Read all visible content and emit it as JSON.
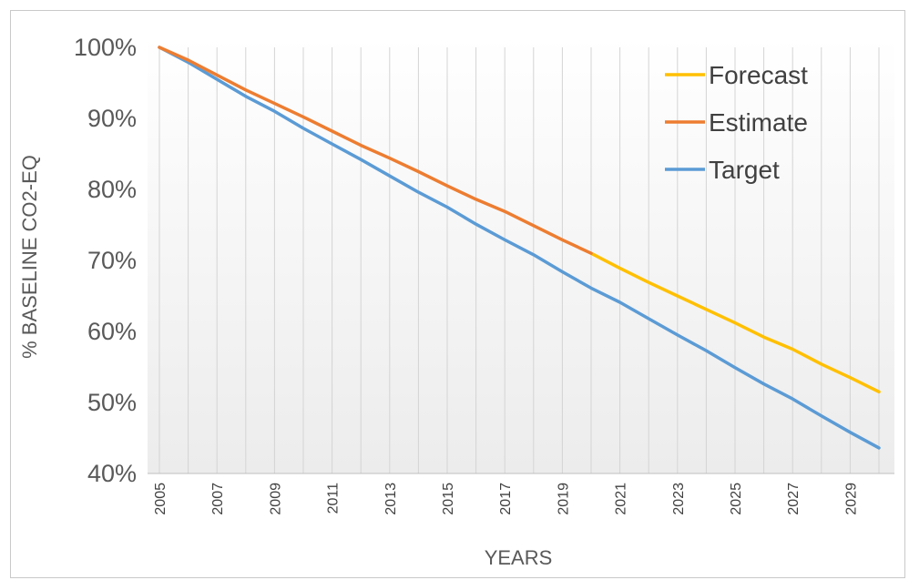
{
  "chart_data": {
    "type": "line",
    "title": "",
    "xlabel": "YEARS",
    "ylabel": "% BASELINE CO2-EQ",
    "x": [
      2005,
      2006,
      2007,
      2008,
      2009,
      2010,
      2011,
      2012,
      2013,
      2014,
      2015,
      2016,
      2017,
      2018,
      2019,
      2020,
      2021,
      2022,
      2023,
      2024,
      2025,
      2026,
      2027,
      2028,
      2029,
      2030
    ],
    "x_tick_labels": [
      "2005",
      "2007",
      "2009",
      "2011",
      "2013",
      "2015",
      "2017",
      "2019",
      "2021",
      "2023",
      "2025",
      "2027",
      "2029"
    ],
    "y_tick_labels": [
      "100%",
      "90%",
      "80%",
      "70%",
      "60%",
      "50%",
      "40%"
    ],
    "ylim": [
      40,
      100
    ],
    "y_unit": "%",
    "grid": "vertical",
    "legend_position": "top-right",
    "series": [
      {
        "name": "Forecast",
        "color": "#FFC000",
        "x": [
          2020,
          2021,
          2022,
          2023,
          2024,
          2025,
          2026,
          2027,
          2028,
          2029,
          2030
        ],
        "values": [
          71.0,
          68.9,
          66.9,
          65.0,
          63.1,
          61.2,
          59.2,
          57.5,
          55.4,
          53.5,
          51.5
        ]
      },
      {
        "name": "Estimate",
        "color": "#ED7D31",
        "x": [
          2005,
          2006,
          2007,
          2008,
          2009,
          2010,
          2011,
          2012,
          2013,
          2014,
          2015,
          2016,
          2017,
          2018,
          2019,
          2020
        ],
        "values": [
          100,
          98.2,
          96.1,
          94.0,
          92.1,
          90.2,
          88.2,
          86.2,
          84.4,
          82.5,
          80.5,
          78.6,
          76.9,
          74.9,
          72.9,
          71.0
        ]
      },
      {
        "name": "Target",
        "color": "#5B9BD5",
        "x": [
          2005,
          2006,
          2007,
          2008,
          2009,
          2010,
          2011,
          2012,
          2013,
          2014,
          2015,
          2016,
          2017,
          2018,
          2019,
          2020,
          2021,
          2022,
          2023,
          2024,
          2025,
          2026,
          2027,
          2028,
          2029,
          2030
        ],
        "values": [
          100,
          97.9,
          95.5,
          93.1,
          91.0,
          88.6,
          86.4,
          84.2,
          81.9,
          79.6,
          77.5,
          75.1,
          72.9,
          70.8,
          68.4,
          66.1,
          64.1,
          61.8,
          59.5,
          57.3,
          54.9,
          52.6,
          50.5,
          48.1,
          45.8,
          43.6
        ]
      }
    ]
  }
}
